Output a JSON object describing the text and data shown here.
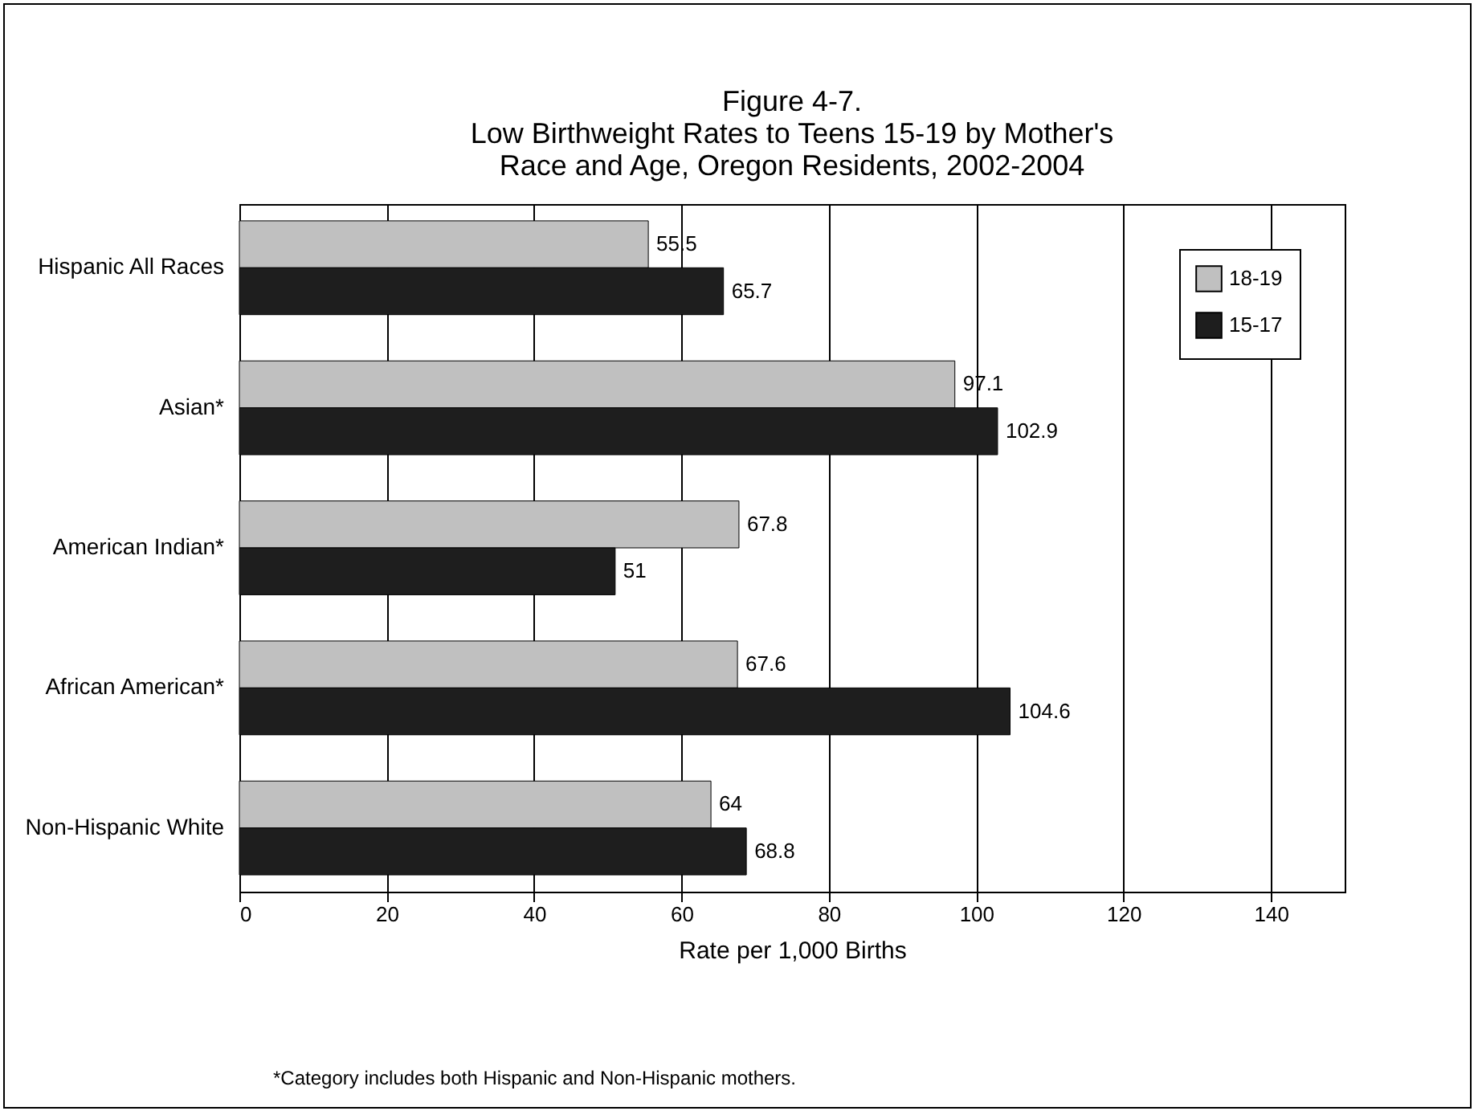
{
  "chart_data": {
    "type": "bar",
    "orientation": "horizontal",
    "title": "Figure 4-7.",
    "subtitle": "Low Birthweight Rates to Teens 15-19 by Mother's Race and Age, Oregon Residents, 2002-2004",
    "xlabel": "Rate per 1,000 Births",
    "categories": [
      "Hispanic All Races",
      "Asian*",
      "American Indian*",
      "African American*",
      "Non-Hispanic White"
    ],
    "series": [
      {
        "name": "18-19",
        "color": "#c0c0c0",
        "values": [
          55.5,
          97.1,
          67.8,
          67.6,
          64
        ]
      },
      {
        "name": "15-17",
        "color": "#1e1e1e",
        "values": [
          65.7,
          102.9,
          51,
          104.6,
          68.8
        ]
      }
    ],
    "xlim": [
      0,
      150
    ],
    "xticks": [
      0,
      20,
      40,
      60,
      80,
      100,
      120,
      140
    ],
    "grid": "x",
    "legend": "top right",
    "data_labels": true,
    "annotations": [
      "*Category includes both Hispanic and Non-Hispanic mothers."
    ]
  }
}
